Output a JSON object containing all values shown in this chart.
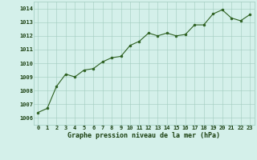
{
  "x": [
    0,
    1,
    2,
    3,
    4,
    5,
    6,
    7,
    8,
    9,
    10,
    11,
    12,
    13,
    14,
    15,
    16,
    17,
    18,
    19,
    20,
    21,
    22,
    23
  ],
  "y": [
    1006.4,
    1006.7,
    1008.3,
    1009.2,
    1009.0,
    1009.5,
    1009.6,
    1010.1,
    1010.4,
    1010.5,
    1011.3,
    1011.6,
    1012.2,
    1012.0,
    1012.2,
    1012.0,
    1012.1,
    1012.8,
    1012.8,
    1013.6,
    1013.9,
    1013.3,
    1013.1,
    1013.55
  ],
  "line_color": "#2d6020",
  "marker_color": "#2d6020",
  "bg_color": "#d4f0ea",
  "grid_color": "#a0ccbe",
  "xlabel": "Graphe pression niveau de la mer (hPa)",
  "xlabel_color": "#1a4010",
  "tick_color": "#1a4010",
  "ylabel_ticks": [
    1006,
    1007,
    1008,
    1009,
    1010,
    1011,
    1012,
    1013,
    1014
  ],
  "ylim": [
    1005.5,
    1014.5
  ],
  "xlim": [
    -0.5,
    23.5
  ],
  "xticks": [
    0,
    1,
    2,
    3,
    4,
    5,
    6,
    7,
    8,
    9,
    10,
    11,
    12,
    13,
    14,
    15,
    16,
    17,
    18,
    19,
    20,
    21,
    22,
    23
  ],
  "tick_fontsize": 5.0,
  "xlabel_fontsize": 6.0
}
